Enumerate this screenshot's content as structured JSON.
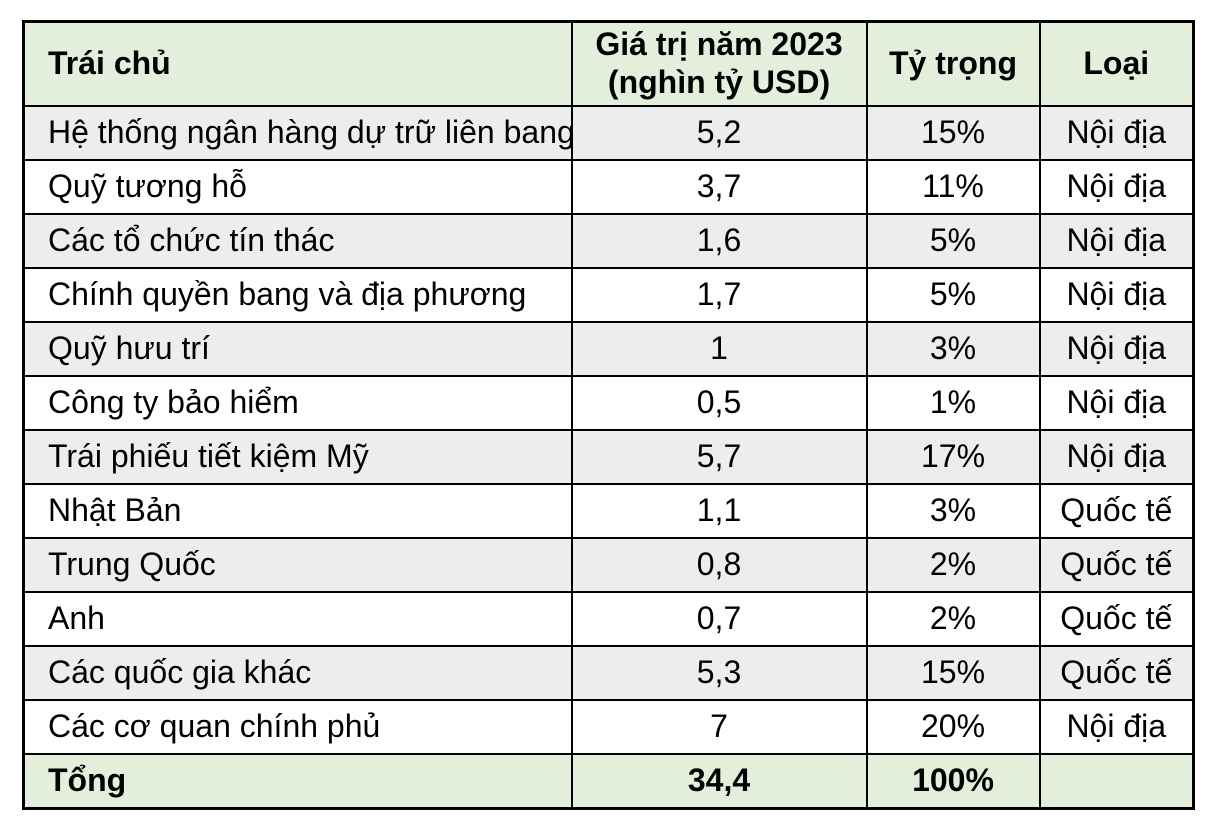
{
  "colors": {
    "header_bg": "#E3EFDB",
    "stripe_bg": "#EDEDED",
    "row_bg": "#FFFFFF",
    "border": "#000000",
    "text": "#000000"
  },
  "table": {
    "header": {
      "col1": "Trái chủ",
      "col2_line1": "Giá trị năm 2023",
      "col2_line2": "(nghìn tỷ USD)",
      "col3": "Tỷ trọng",
      "col4": "Loại"
    },
    "rows": [
      {
        "name": "Hệ thống ngân hàng dự trữ liên bang",
        "value": "5,2",
        "share": "15%",
        "type": "Nội địa"
      },
      {
        "name": "Quỹ tương hỗ",
        "value": "3,7",
        "share": "11%",
        "type": "Nội địa"
      },
      {
        "name": "Các tổ chức tín thác",
        "value": "1,6",
        "share": "5%",
        "type": "Nội địa"
      },
      {
        "name": "Chính quyền bang và địa phương",
        "value": "1,7",
        "share": "5%",
        "type": "Nội địa"
      },
      {
        "name": "Quỹ hưu trí",
        "value": "1",
        "share": "3%",
        "type": "Nội địa"
      },
      {
        "name": "Công ty bảo hiểm",
        "value": "0,5",
        "share": "1%",
        "type": "Nội địa"
      },
      {
        "name": "Trái phiếu tiết kiệm Mỹ",
        "value": "5,7",
        "share": "17%",
        "type": "Nội địa"
      },
      {
        "name": "Nhật Bản",
        "value": "1,1",
        "share": "3%",
        "type": "Quốc tế"
      },
      {
        "name": "Trung Quốc",
        "value": "0,8",
        "share": "2%",
        "type": "Quốc tế"
      },
      {
        "name": "Anh",
        "value": "0,7",
        "share": "2%",
        "type": "Quốc tế"
      },
      {
        "name": "Các quốc gia khác",
        "value": "5,3",
        "share": "15%",
        "type": "Quốc tế"
      },
      {
        "name": "Các cơ quan chính phủ",
        "value": "7",
        "share": "20%",
        "type": "Nội địa"
      }
    ],
    "total": {
      "label": "Tổng",
      "value": "34,4",
      "share": "100%",
      "type": ""
    }
  }
}
